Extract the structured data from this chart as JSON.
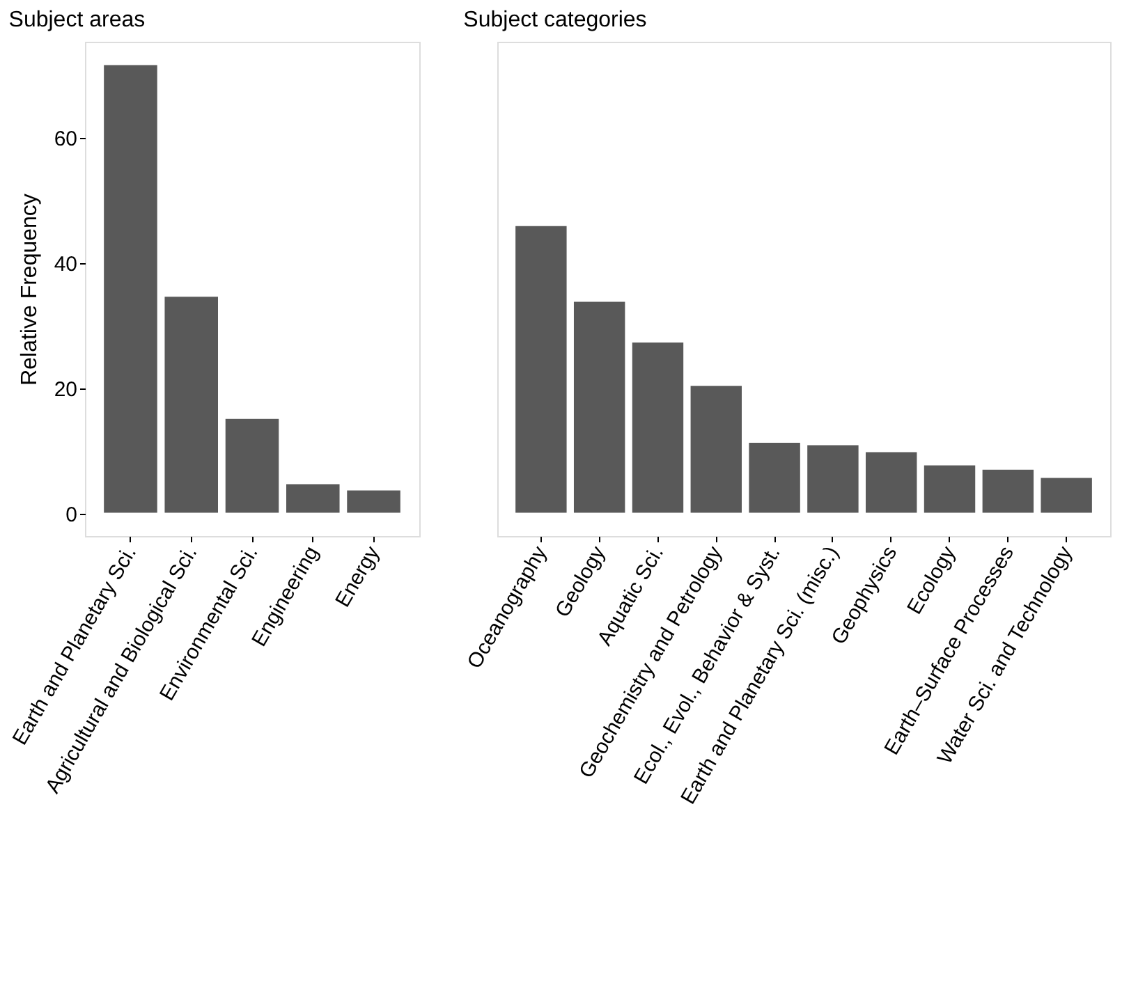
{
  "chart_data": [
    {
      "type": "bar",
      "title": "Subject areas",
      "ylabel": "Relative Frequency",
      "categories": [
        "Earth and Planetary Sci.",
        "Agricultural and Biological Sci.",
        "Environmental Sci.",
        "Engineering",
        "Energy"
      ],
      "values": [
        71.7,
        34.7,
        15.2,
        4.8,
        3.8
      ],
      "color": "#595959",
      "ylim": [
        -3.6,
        75.3
      ],
      "yticks": [
        0,
        20,
        40,
        60
      ],
      "grid": false
    },
    {
      "type": "bar",
      "title": "Subject categories",
      "categories": [
        "Oceanography",
        "Geology",
        "Aquatic Sci.",
        "Geochemistry and Petrology",
        "Ecol., Evol., Behavior & Syst.",
        "Earth and Planetary Sci. (misc.)",
        "Geophysics",
        "Ecology",
        "Earth–Surface Processes",
        "Water Sci. and Technology"
      ],
      "values": [
        46.0,
        33.9,
        27.4,
        20.5,
        11.4,
        11.0,
        9.9,
        7.8,
        7.1,
        5.8
      ],
      "color": "#595959",
      "ylim": [
        -3.6,
        75.3
      ],
      "yticks": [
        0,
        20,
        40,
        60
      ],
      "grid": false,
      "tick_labels": "x"
    }
  ]
}
